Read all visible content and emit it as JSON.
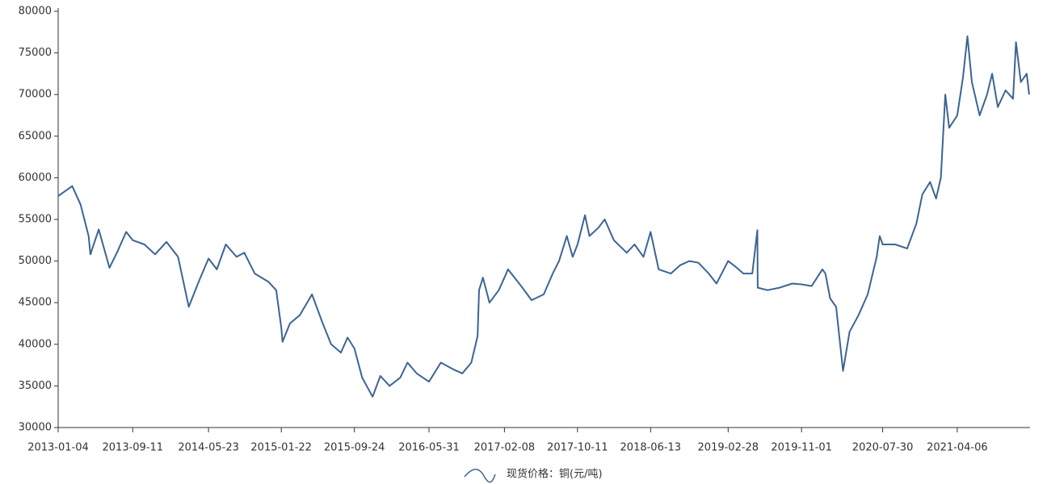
{
  "chart_data": {
    "type": "line",
    "x": [
      "2013-01-04",
      "2013-02-20",
      "2013-03-20",
      "2013-04-16",
      "2013-04-22",
      "2013-05-20",
      "2013-06-25",
      "2013-07-20",
      "2013-08-20",
      "2013-09-11",
      "2013-10-20",
      "2013-11-25",
      "2014-01-02",
      "2014-02-10",
      "2014-03-18",
      "2014-04-20",
      "2014-05-23",
      "2014-06-20",
      "2014-07-20",
      "2014-08-25",
      "2014-09-20",
      "2014-10-25",
      "2014-12-10",
      "2015-01-05",
      "2015-01-22",
      "2015-01-26",
      "2015-02-20",
      "2015-03-25",
      "2015-05-05",
      "2015-06-10",
      "2015-07-08",
      "2015-08-10",
      "2015-09-01",
      "2015-09-24",
      "2015-10-20",
      "2015-11-24",
      "2015-12-20",
      "2016-01-20",
      "2016-02-25",
      "2016-03-20",
      "2016-04-20",
      "2016-05-31",
      "2016-07-10",
      "2016-08-20",
      "2016-09-20",
      "2016-10-20",
      "2016-11-10",
      "2016-11-15",
      "2016-11-28",
      "2016-12-20",
      "2017-01-20",
      "2017-02-08",
      "2017-02-20",
      "2017-04-05",
      "2017-05-10",
      "2017-06-20",
      "2017-07-20",
      "2017-08-10",
      "2017-09-05",
      "2017-09-25",
      "2017-10-11",
      "2017-11-05",
      "2017-11-20",
      "2017-12-20",
      "2018-01-10",
      "2018-02-10",
      "2018-03-25",
      "2018-04-20",
      "2018-05-20",
      "2018-06-13",
      "2018-07-10",
      "2018-08-20",
      "2018-09-20",
      "2018-10-20",
      "2018-11-20",
      "2018-12-25",
      "2019-01-20",
      "2019-02-28",
      "2019-03-25",
      "2019-04-20",
      "2019-05-20",
      "2019-06-06",
      "2019-06-07",
      "2019-07-10",
      "2019-08-20",
      "2019-10-01",
      "2019-11-01",
      "2019-12-05",
      "2020-01-10",
      "2020-01-20",
      "2020-02-05",
      "2020-02-25",
      "2020-03-19",
      "2020-04-10",
      "2020-05-10",
      "2020-06-10",
      "2020-07-10",
      "2020-07-20",
      "2020-07-30",
      "2020-09-10",
      "2020-10-20",
      "2020-11-20",
      "2020-12-10",
      "2021-01-05",
      "2021-01-25",
      "2021-02-10",
      "2021-02-25",
      "2021-03-10",
      "2021-04-06",
      "2021-04-25",
      "2021-05-10",
      "2021-05-25",
      "2021-06-20",
      "2021-07-15",
      "2021-08-01",
      "2021-08-20",
      "2021-09-15",
      "2021-10-10",
      "2021-10-20",
      "2021-11-05",
      "2021-11-25",
      "2021-12-03"
    ],
    "series": [
      {
        "name": "现货价格：铜(元/吨)",
        "color": "#3c6494",
        "values": [
          57800,
          59000,
          56800,
          53000,
          50800,
          53800,
          49200,
          51000,
          53500,
          52500,
          52000,
          50800,
          52300,
          50500,
          44500,
          47500,
          50300,
          49000,
          52000,
          50500,
          51000,
          48500,
          47500,
          46500,
          42000,
          40300,
          42500,
          43500,
          46000,
          42500,
          40000,
          39000,
          40800,
          39500,
          36000,
          33700,
          36200,
          35000,
          36000,
          37800,
          36500,
          35500,
          37800,
          37000,
          36500,
          37800,
          41000,
          46500,
          48000,
          45000,
          46500,
          48000,
          49000,
          47000,
          45300,
          46000,
          48500,
          50000,
          53000,
          50500,
          52000,
          55500,
          53000,
          54000,
          55000,
          52500,
          51000,
          52000,
          50500,
          53500,
          49000,
          48500,
          49500,
          50000,
          49800,
          48500,
          47300,
          50000,
          49300,
          48500,
          48500,
          53700,
          46800,
          46500,
          46800,
          47300,
          47200,
          47000,
          49000,
          48500,
          45500,
          44500,
          36800,
          41500,
          43500,
          46000,
          50500,
          53000,
          52000,
          52000,
          51500,
          54500,
          58000,
          59500,
          57500,
          60000,
          70000,
          66000,
          67500,
          72000,
          77000,
          71500,
          67500,
          70000,
          72500,
          68500,
          70500,
          69500,
          76300,
          71500,
          72500,
          70000
        ]
      }
    ],
    "xlim": [
      "2013-01-04",
      "2021-12-06"
    ],
    "xticks": [
      "2013-01-04",
      "2013-09-11",
      "2014-05-23",
      "2015-01-22",
      "2015-09-24",
      "2016-05-31",
      "2017-02-08",
      "2017-10-11",
      "2018-06-13",
      "2019-02-28",
      "2019-11-01",
      "2020-07-30",
      "2021-04-06"
    ],
    "ylim": [
      30000,
      80000
    ],
    "yticks": [
      30000,
      35000,
      40000,
      45000,
      50000,
      55000,
      60000,
      65000,
      70000,
      75000,
      80000
    ],
    "grid": false,
    "legend": "bottom"
  }
}
